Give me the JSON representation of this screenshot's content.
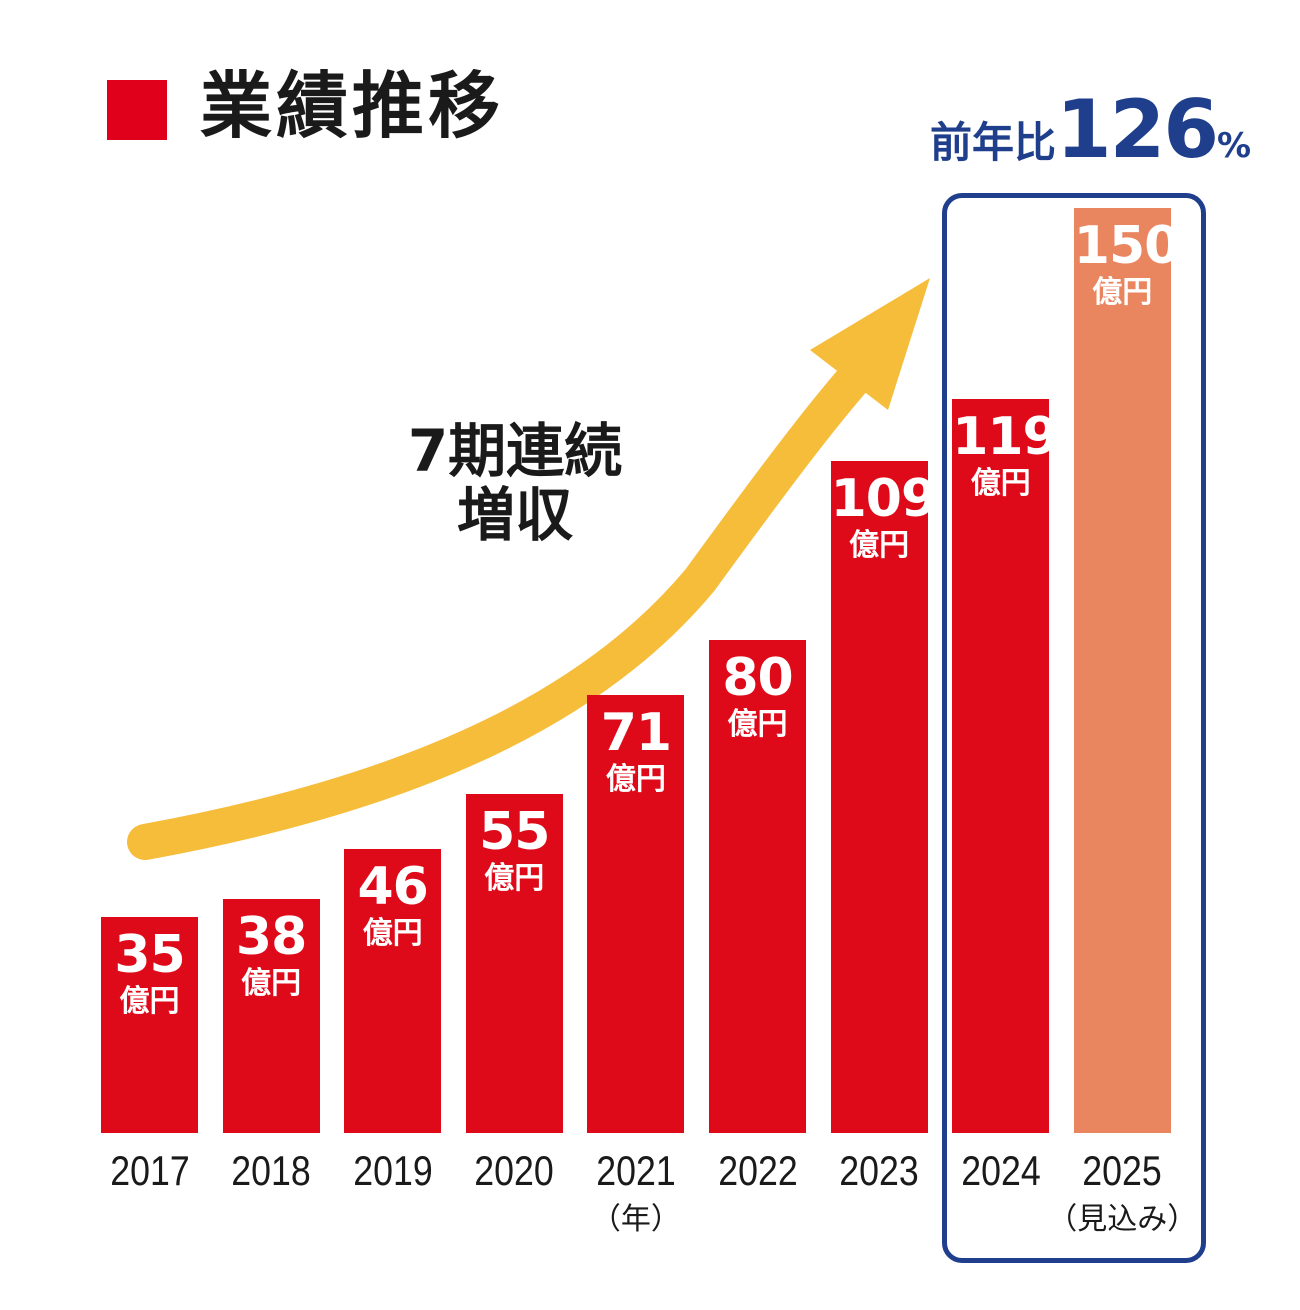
{
  "title": "業績推移",
  "yoy": {
    "label": "前年比",
    "value": "126",
    "unit": "%"
  },
  "annotation": {
    "line1": "7期連続",
    "line2": "増収"
  },
  "unit_label": "億円",
  "colors": {
    "title_square": "#e0001b",
    "bar_actual": "#de0a1a",
    "bar_forecast": "#e98660",
    "highlight_border": "#1f3e8c",
    "arrow": "#f6bd3b",
    "text": "#1a1a1a"
  },
  "chart_data": {
    "type": "bar",
    "categories": [
      "2017",
      "2018",
      "2019",
      "2020",
      "2021",
      "2022",
      "2023",
      "2024",
      "2025"
    ],
    "category_notes": [
      "",
      "",
      "",
      "",
      "（年）",
      "",
      "",
      "",
      "（見込み）"
    ],
    "values": [
      35,
      38,
      46,
      55,
      71,
      80,
      109,
      119,
      150
    ],
    "value_labels": [
      "35",
      "38",
      "46",
      "55",
      "71",
      "80",
      "109",
      "119",
      "150"
    ],
    "forecast": [
      false,
      false,
      false,
      false,
      false,
      false,
      false,
      false,
      true
    ],
    "highlighted_categories": [
      "2024",
      "2025"
    ],
    "ylim": [
      0,
      150
    ],
    "grid": false
  }
}
